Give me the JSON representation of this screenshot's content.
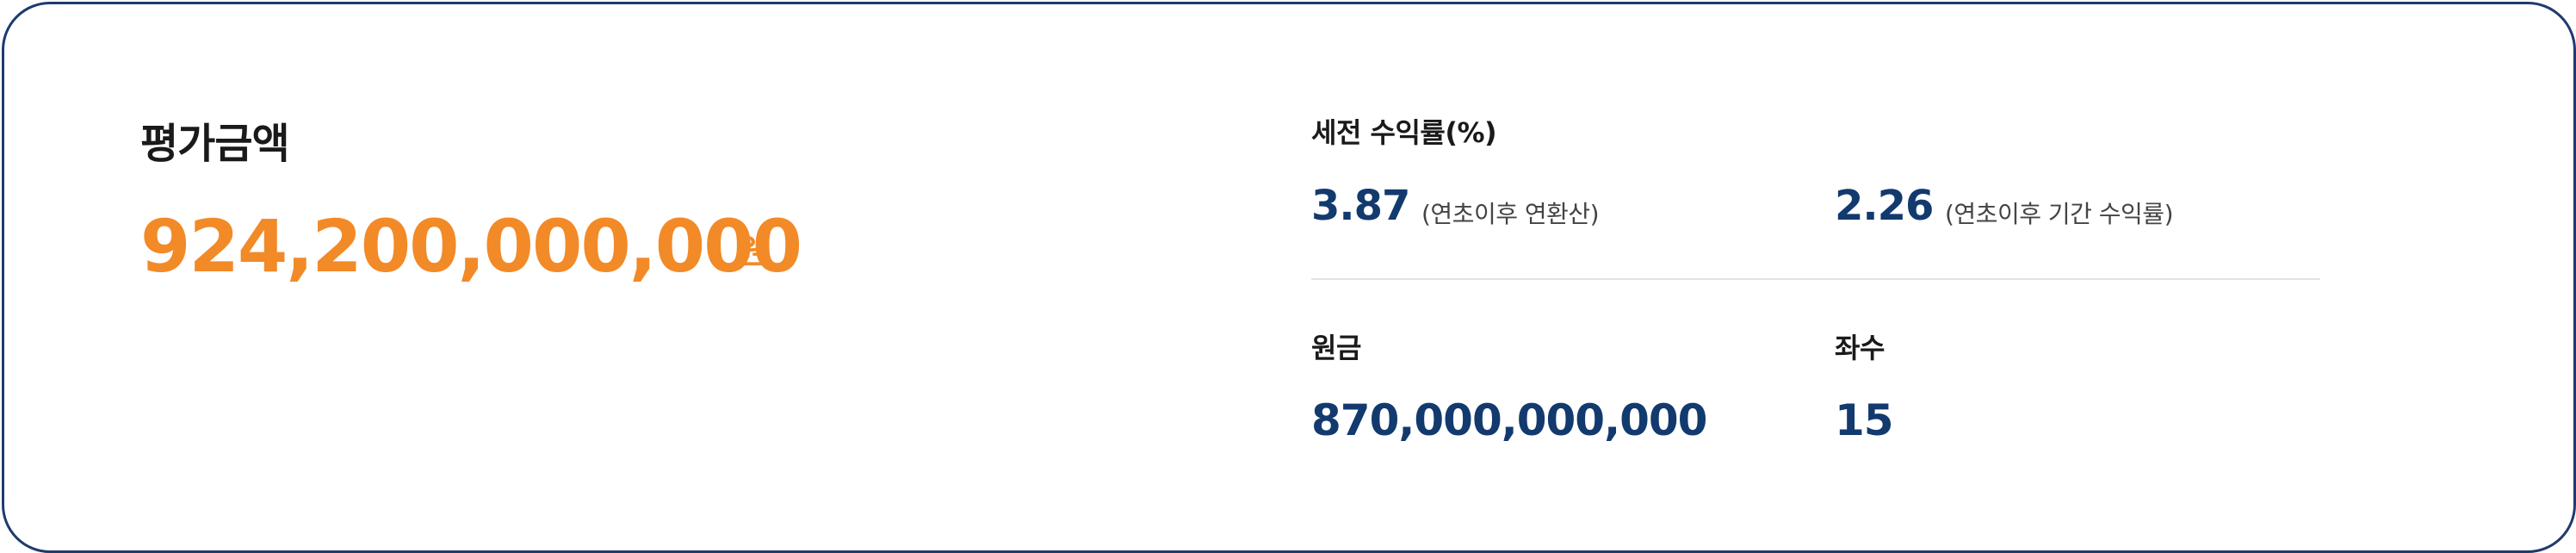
{
  "evaluation": {
    "label": "평가금액",
    "value": "924,200,000,000",
    "unit": "원"
  },
  "pretax_return": {
    "label": "세전 수익률(%)",
    "annualized": {
      "value": "3.87",
      "note": "(연초이후 연환산)"
    },
    "period": {
      "value": "2.26",
      "note": "(연초이후 기간 수익률)"
    }
  },
  "principal": {
    "label": "원금",
    "value": "870,000,000,000"
  },
  "count": {
    "label": "좌수",
    "value": "15"
  },
  "colors": {
    "accent_orange": "#f28a28",
    "value_blue": "#123a6e",
    "border_navy": "#1f3a6e",
    "divider": "#e3e3e3"
  }
}
